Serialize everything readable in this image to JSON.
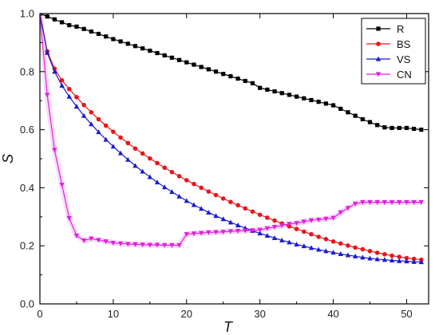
{
  "chart_data": {
    "type": "line",
    "title": "",
    "xlabel": "T",
    "ylabel": "S",
    "xlim": [
      0,
      53
    ],
    "ylim": [
      0.0,
      1.0
    ],
    "xticks": [
      0,
      10,
      20,
      30,
      40,
      50
    ],
    "yticks": [
      0.0,
      0.2,
      0.4,
      0.6,
      0.8,
      1.0
    ],
    "xtick_labels": [
      "0",
      "10",
      "20",
      "30",
      "40",
      "50"
    ],
    "ytick_labels": [
      "0.0",
      "0.2",
      "0.4",
      "0.6",
      "0.8",
      "1.0"
    ],
    "grid": false,
    "legend_position": "top-right",
    "x": [
      0,
      1,
      2,
      3,
      4,
      5,
      6,
      7,
      8,
      9,
      10,
      11,
      12,
      13,
      14,
      15,
      16,
      17,
      18,
      19,
      20,
      21,
      22,
      23,
      24,
      25,
      26,
      27,
      28,
      29,
      30,
      31,
      32,
      33,
      34,
      35,
      36,
      37,
      38,
      39,
      40,
      41,
      42,
      43,
      44,
      45,
      46,
      47,
      48,
      49,
      50,
      51,
      52
    ],
    "series": [
      {
        "name": "R",
        "color": "#000000",
        "marker": "square",
        "values": [
          1.0,
          0.99,
          0.98,
          0.97,
          0.96,
          0.955,
          0.947,
          0.938,
          0.93,
          0.921,
          0.912,
          0.904,
          0.896,
          0.888,
          0.88,
          0.872,
          0.864,
          0.856,
          0.848,
          0.84,
          0.832,
          0.824,
          0.816,
          0.808,
          0.8,
          0.792,
          0.784,
          0.776,
          0.768,
          0.76,
          0.744,
          0.738,
          0.732,
          0.726,
          0.72,
          0.714,
          0.708,
          0.702,
          0.696,
          0.69,
          0.684,
          0.672,
          0.66,
          0.648,
          0.636,
          0.626,
          0.616,
          0.608,
          0.606,
          0.606,
          0.606,
          0.603,
          0.6
        ]
      },
      {
        "name": "BS",
        "color": "#e8151b",
        "marker": "circle",
        "values": [
          1.0,
          0.87,
          0.81,
          0.77,
          0.74,
          0.712,
          0.685,
          0.66,
          0.636,
          0.614,
          0.593,
          0.573,
          0.554,
          0.535,
          0.518,
          0.501,
          0.485,
          0.469,
          0.454,
          0.44,
          0.426,
          0.413,
          0.4,
          0.387,
          0.375,
          0.363,
          0.351,
          0.34,
          0.329,
          0.318,
          0.307,
          0.297,
          0.287,
          0.277,
          0.267,
          0.258,
          0.249,
          0.24,
          0.231,
          0.223,
          0.215,
          0.208,
          0.201,
          0.194,
          0.188,
          0.182,
          0.176,
          0.171,
          0.166,
          0.162,
          0.158,
          0.155,
          0.152
        ]
      },
      {
        "name": "VS",
        "color": "#1a1ad0",
        "marker": "triangle-up",
        "values": [
          1.0,
          0.865,
          0.8,
          0.752,
          0.714,
          0.68,
          0.648,
          0.619,
          0.592,
          0.566,
          0.542,
          0.519,
          0.497,
          0.476,
          0.456,
          0.437,
          0.419,
          0.402,
          0.386,
          0.37,
          0.355,
          0.341,
          0.328,
          0.315,
          0.303,
          0.292,
          0.281,
          0.271,
          0.261,
          0.252,
          0.243,
          0.235,
          0.227,
          0.219,
          0.212,
          0.205,
          0.199,
          0.193,
          0.187,
          0.182,
          0.177,
          0.172,
          0.168,
          0.164,
          0.16,
          0.157,
          0.154,
          0.152,
          0.15,
          0.148,
          0.147,
          0.145,
          0.144
        ]
      },
      {
        "name": "CN",
        "color": "#e020e0",
        "marker": "triangle-down",
        "values": [
          1.0,
          0.72,
          0.53,
          0.41,
          0.295,
          0.235,
          0.218,
          0.225,
          0.22,
          0.215,
          0.21,
          0.208,
          0.206,
          0.205,
          0.204,
          0.203,
          0.203,
          0.202,
          0.202,
          0.202,
          0.24,
          0.242,
          0.244,
          0.246,
          0.247,
          0.248,
          0.25,
          0.251,
          0.252,
          0.253,
          0.255,
          0.26,
          0.265,
          0.27,
          0.275,
          0.278,
          0.283,
          0.288,
          0.29,
          0.293,
          0.296,
          0.315,
          0.33,
          0.345,
          0.35,
          0.35,
          0.35,
          0.35,
          0.35,
          0.35,
          0.35,
          0.35,
          0.35
        ]
      }
    ]
  }
}
